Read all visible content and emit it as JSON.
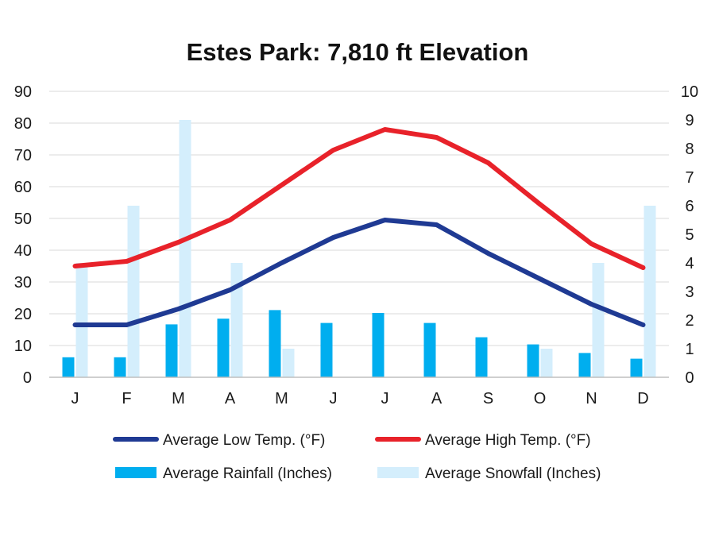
{
  "chart_data": {
    "type": "bar",
    "title": "Estes Park: 7,810 ft Elevation",
    "categories": [
      "J",
      "F",
      "M",
      "A",
      "M",
      "J",
      "J",
      "A",
      "S",
      "O",
      "N",
      "D"
    ],
    "y_left": {
      "range": [
        0,
        90
      ],
      "ticks": [
        "0",
        "10",
        "20",
        "30",
        "40",
        "50",
        "60",
        "70",
        "80",
        "90"
      ]
    },
    "y_right": {
      "range": [
        0,
        10
      ],
      "ticks": [
        "0",
        "1",
        "2",
        "3",
        "4",
        "5",
        "6",
        "7",
        "8",
        "9",
        "10"
      ]
    },
    "grid": true,
    "legend_position": "bottom",
    "series": [
      {
        "name": "Average Low Temp. (°F)",
        "kind": "line",
        "axis": "left",
        "color": "#1f3a93",
        "values": [
          16.5,
          16.5,
          21.5,
          27.5,
          36,
          44,
          49.5,
          48,
          39,
          31,
          23,
          16.5
        ]
      },
      {
        "name": "Average High Temp. (°F)",
        "kind": "line",
        "axis": "left",
        "color": "#e8222a",
        "values": [
          35,
          36.5,
          42.5,
          49.5,
          60.5,
          71.5,
          78,
          75.5,
          67.5,
          54.5,
          42,
          34.5
        ]
      },
      {
        "name": "Average Rainfall (Inches)",
        "kind": "bar",
        "axis": "right",
        "color": "#00aeef",
        "values": [
          0.7,
          0.7,
          1.85,
          2.05,
          2.35,
          1.9,
          2.25,
          1.9,
          1.4,
          1.15,
          0.85,
          0.65
        ]
      },
      {
        "name": "Average Snowfall (Inches)",
        "kind": "bar",
        "axis": "right",
        "color": "#d4eefc",
        "values": [
          4.0,
          6.0,
          9.0,
          4.0,
          1.0,
          0,
          0,
          0,
          0,
          1.0,
          4.0,
          6.0
        ]
      }
    ],
    "gridline_color": "#d9d9d9"
  }
}
